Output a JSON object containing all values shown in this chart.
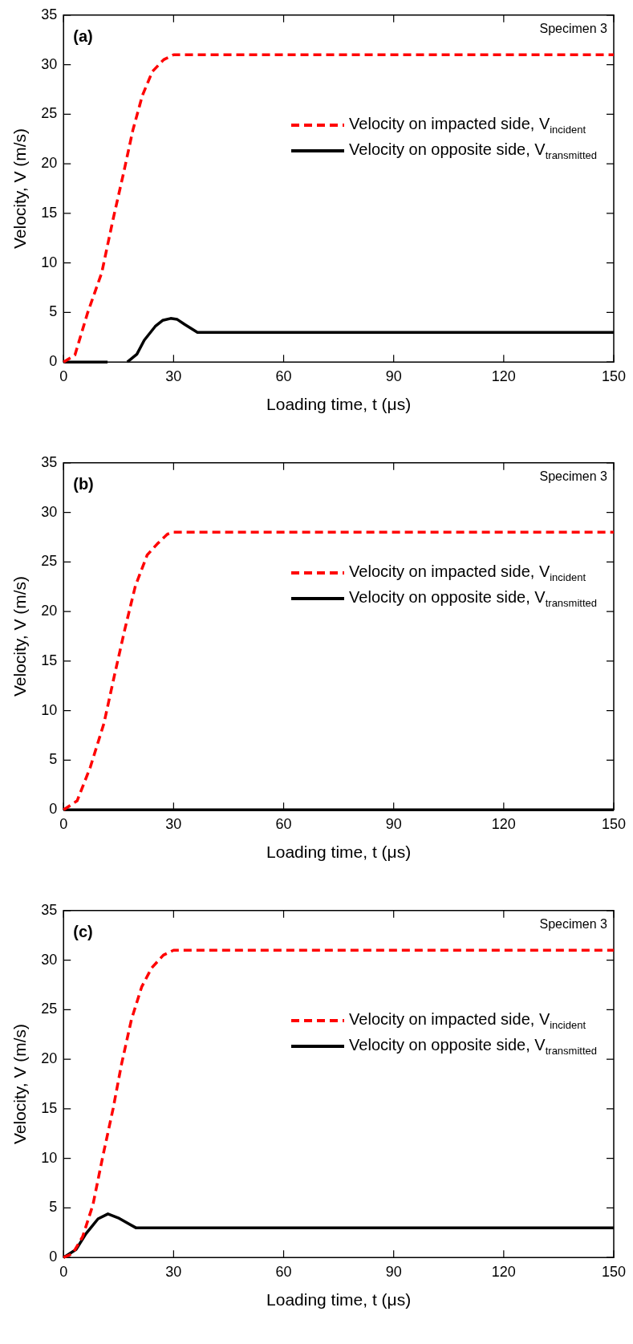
{
  "chart_data": [
    {
      "type": "line",
      "xlabel": "Loading time, t (μs)",
      "ylabel": "Velocity, V (m/s)",
      "annotations": [
        "(a)",
        "Specimen 3"
      ],
      "xlim": [
        0,
        150
      ],
      "xticks": [
        0,
        30,
        60,
        90,
        120,
        150
      ],
      "ylim": [
        0,
        35
      ],
      "yticks": [
        0,
        5,
        10,
        15,
        20,
        25,
        30,
        35
      ],
      "grid": false,
      "legend": "right",
      "marker": "none",
      "series": [
        {
          "name": "Velocity on impacted side, V$_{incident}$",
          "color": "#ff0000",
          "line_style": "dashed",
          "x": [
            0,
            3.1,
            6.5,
            10.4,
            13.5,
            16.2,
            18.9,
            21.5,
            24.2,
            27.3,
            30,
            150
          ],
          "values": [
            0,
            0.7,
            4.9,
            9.0,
            14.4,
            18.8,
            23.4,
            26.9,
            29.3,
            30.5,
            31,
            31
          ]
        },
        {
          "name": "Velocity on opposite side, V$_{transmitted}$",
          "color": "#000000",
          "line_style": "solid",
          "x": [
            0,
            12,
            12.1,
            17.4,
            20,
            22,
            25,
            27,
            29.2,
            31,
            33,
            36.5,
            150
          ],
          "values": [
            0,
            0,
            null,
            0,
            0.8,
            2.2,
            3.6,
            4.2,
            4.4,
            4.3,
            3.8,
            3.0,
            3.0
          ]
        }
      ]
    },
    {
      "type": "line",
      "xlabel": "Loading time, t (μs)",
      "ylabel": "Velocity, V (m/s)",
      "annotations": [
        "(b)",
        "Specimen 3"
      ],
      "xlim": [
        0,
        150
      ],
      "xticks": [
        0,
        30,
        60,
        90,
        120,
        150
      ],
      "ylim": [
        0,
        35
      ],
      "yticks": [
        0,
        5,
        10,
        15,
        20,
        25,
        30,
        35
      ],
      "grid": false,
      "legend": "right",
      "marker": "none",
      "series": [
        {
          "name": "Velocity on impacted side, V$_{incident}$",
          "color": "#ff0000",
          "line_style": "dashed",
          "x": [
            0,
            3.7,
            7.3,
            11.0,
            13.9,
            16.7,
            19.6,
            22.8,
            25.5,
            28.3,
            30,
            150
          ],
          "values": [
            0,
            0.9,
            4.3,
            8.7,
            13.6,
            18.2,
            22.6,
            25.7,
            26.8,
            27.8,
            28,
            28
          ]
        },
        {
          "name": "Velocity on opposite side, V$_{transmitted}$",
          "color": "#000000",
          "line_style": "solid",
          "x": [
            0,
            150
          ],
          "values": [
            0,
            0
          ]
        }
      ]
    },
    {
      "type": "line",
      "xlabel": "Loading time, t (μs)",
      "ylabel": "Velocity, V (m/s)",
      "annotations": [
        "(c)",
        "Specimen 3"
      ],
      "xlim": [
        0,
        150
      ],
      "xticks": [
        0,
        30,
        60,
        90,
        120,
        150
      ],
      "ylim": [
        0,
        35
      ],
      "yticks": [
        0,
        5,
        10,
        15,
        20,
        25,
        30,
        35
      ],
      "grid": false,
      "legend": "right",
      "marker": "none",
      "series": [
        {
          "name": "Velocity on impacted side, V$_{incident}$",
          "color": "#ff0000",
          "line_style": "dashed",
          "x": [
            0,
            2.5,
            5.2,
            8.0,
            10.7,
            13.5,
            15.8,
            18.5,
            21.3,
            24.0,
            27.2,
            30,
            150
          ],
          "values": [
            0,
            0.4,
            2.1,
            5.3,
            10.2,
            15.0,
            19.5,
            24.0,
            27.3,
            29.2,
            30.5,
            31,
            31
          ]
        },
        {
          "name": "Velocity on opposite side, V$_{transmitted}$",
          "color": "#000000",
          "line_style": "solid",
          "x": [
            0,
            3.4,
            6.1,
            9.4,
            12.1,
            14.9,
            19.7,
            150
          ],
          "values": [
            0,
            0.8,
            2.4,
            3.9,
            4.4,
            4.0,
            3.0,
            3.0
          ]
        }
      ]
    }
  ]
}
